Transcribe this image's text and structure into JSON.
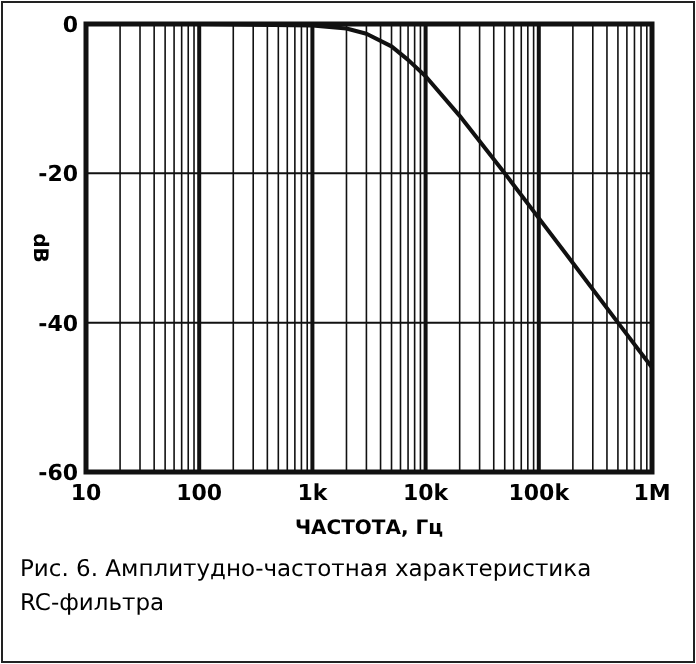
{
  "chart_data": {
    "type": "line",
    "xlabel": "ЧАСТОТА, Гц",
    "ylabel": "dB",
    "log": "x",
    "grid": true,
    "marker": "none",
    "line_style": "solid",
    "x": [
      10,
      100,
      1000,
      2000,
      3000,
      5000,
      7000,
      10000,
      20000,
      50000,
      100000,
      200000,
      500000,
      1000000
    ],
    "series": [
      {
        "color": "#111111",
        "values": [
          0,
          0,
          -0.2,
          -0.6,
          -1.3,
          -3,
          -4.8,
          -7,
          -12.3,
          -20,
          -26,
          -32,
          -40,
          -46
        ]
      }
    ],
    "xlim": [
      10,
      1000000
    ],
    "ylim": [
      -60,
      0
    ],
    "yticks": [
      -60,
      -40,
      -20,
      0
    ],
    "xticks": [
      10,
      {
        "value": 20,
        "label": null
      },
      {
        "value": 30,
        "label": null
      },
      {
        "value": 40,
        "label": null
      },
      {
        "value": 50,
        "label": null
      },
      {
        "value": 60,
        "label": null
      },
      {
        "value": 70,
        "label": null
      },
      {
        "value": 80,
        "label": null
      },
      {
        "value": 90,
        "label": null
      },
      100,
      {
        "value": 200,
        "label": null
      },
      {
        "value": 300,
        "label": null
      },
      {
        "value": 400,
        "label": null
      },
      {
        "value": 500,
        "label": null
      },
      {
        "value": 600,
        "label": null
      },
      {
        "value": 700,
        "label": null
      },
      {
        "value": 800,
        "label": null
      },
      {
        "value": 900,
        "label": null
      },
      {
        "value": 1000,
        "label": "1k"
      },
      {
        "value": 2000,
        "label": null
      },
      {
        "value": 3000,
        "label": null
      },
      {
        "value": 4000,
        "label": null
      },
      {
        "value": 5000,
        "label": null
      },
      {
        "value": 6000,
        "label": null
      },
      {
        "value": 7000,
        "label": null
      },
      {
        "value": 8000,
        "label": null
      },
      {
        "value": 9000,
        "label": null
      },
      {
        "value": 10000,
        "label": "10k"
      },
      {
        "value": 20000,
        "label": null
      },
      {
        "value": 30000,
        "label": null
      },
      {
        "value": 40000,
        "label": null
      },
      {
        "value": 50000,
        "label": null
      },
      {
        "value": 60000,
        "label": null
      },
      {
        "value": 70000,
        "label": null
      },
      {
        "value": 80000,
        "label": null
      },
      {
        "value": 90000,
        "label": null
      },
      {
        "value": 100000,
        "label": "100k"
      },
      {
        "value": 200000,
        "label": null
      },
      {
        "value": 300000,
        "label": null
      },
      {
        "value": 400000,
        "label": null
      },
      {
        "value": 500000,
        "label": null
      },
      {
        "value": 600000,
        "label": null
      },
      {
        "value": 700000,
        "label": null
      },
      {
        "value": 800000,
        "label": null
      },
      {
        "value": 900000,
        "label": null
      },
      {
        "value": 1000000,
        "label": "1M"
      }
    ],
    "annotations": [
      "Рис. 6. Амплитудно-частотная характеристика RC-фильтра"
    ]
  }
}
